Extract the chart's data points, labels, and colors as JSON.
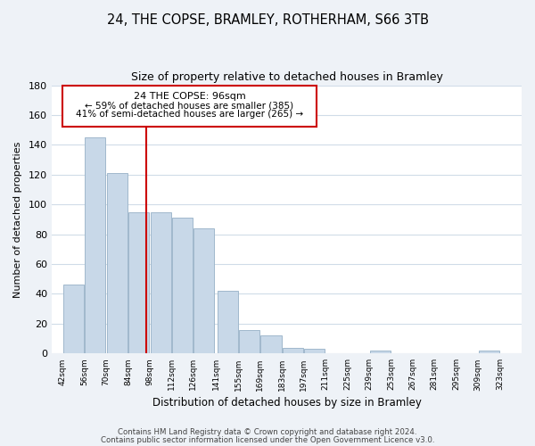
{
  "title": "24, THE COPSE, BRAMLEY, ROTHERHAM, S66 3TB",
  "subtitle": "Size of property relative to detached houses in Bramley",
  "xlabel": "Distribution of detached houses by size in Bramley",
  "ylabel": "Number of detached properties",
  "bar_color": "#c8d8e8",
  "bar_edge_color": "#a0b8cc",
  "vline_x": 96,
  "vline_color": "#cc0000",
  "annotation_title": "24 THE COPSE: 96sqm",
  "annotation_line1": "← 59% of detached houses are smaller (385)",
  "annotation_line2": "41% of semi-detached houses are larger (265) →",
  "annotation_box_edge": "#cc0000",
  "bins_left": [
    42,
    56,
    70,
    84,
    98,
    112,
    126,
    141,
    155,
    169,
    183,
    197,
    211,
    225,
    239,
    253,
    267,
    281,
    295,
    309
  ],
  "bin_width": 14,
  "counts": [
    46,
    145,
    121,
    95,
    95,
    91,
    84,
    42,
    16,
    12,
    4,
    3,
    0,
    0,
    2,
    0,
    0,
    0,
    0,
    2
  ],
  "xlim_left": 35,
  "xlim_right": 337,
  "ylim_top": 180,
  "yticks": [
    0,
    20,
    40,
    60,
    80,
    100,
    120,
    140,
    160,
    180
  ],
  "tick_labels": [
    "42sqm",
    "56sqm",
    "70sqm",
    "84sqm",
    "98sqm",
    "112sqm",
    "126sqm",
    "141sqm",
    "155sqm",
    "169sqm",
    "183sqm",
    "197sqm",
    "211sqm",
    "225sqm",
    "239sqm",
    "253sqm",
    "267sqm",
    "281sqm",
    "295sqm",
    "309sqm",
    "323sqm"
  ],
  "tick_positions": [
    42,
    56,
    70,
    84,
    98,
    112,
    126,
    141,
    155,
    169,
    183,
    197,
    211,
    225,
    239,
    253,
    267,
    281,
    295,
    309,
    323
  ],
  "footer1": "Contains HM Land Registry data © Crown copyright and database right 2024.",
  "footer2": "Contains public sector information licensed under the Open Government Licence v3.0.",
  "background_color": "#eef2f7",
  "plot_bg_color": "#ffffff",
  "grid_color": "#d0dce8"
}
